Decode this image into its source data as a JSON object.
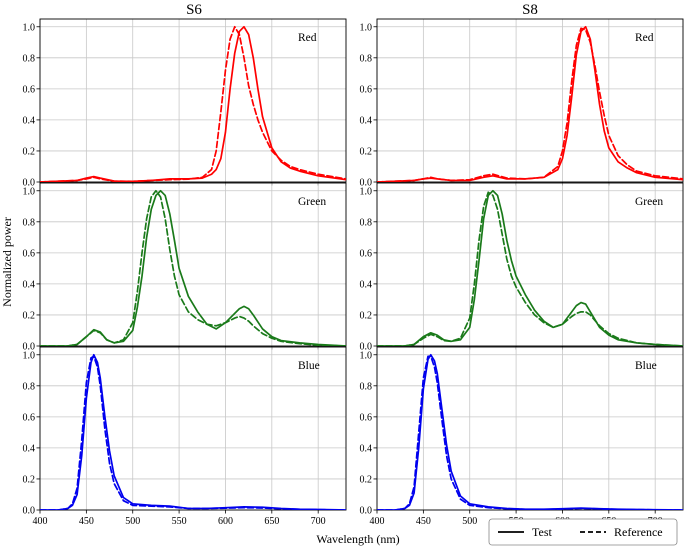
{
  "figure": {
    "ylabel": "Normalized power",
    "xlabel": "Wavelength (nm)",
    "legend": {
      "solid_label": "Test",
      "dashed_label": "Reference",
      "placement": "bottom-right, below plots"
    }
  },
  "columns": [
    "S6",
    "S8"
  ],
  "rows": [
    "Red",
    "Green",
    "Blue"
  ],
  "colors": {
    "Red": "#ff0000",
    "Green": "#1a7a1a",
    "Blue": "#0000ee"
  },
  "x_ticks": [
    "400",
    "450",
    "500",
    "550",
    "600",
    "650",
    "700"
  ],
  "y_ticks": [
    "0.0",
    "0.2",
    "0.4",
    "0.6",
    "0.8",
    "1.0"
  ],
  "chart_data": {
    "type": "line",
    "xlabel": "Wavelength (nm)",
    "ylabel": "Normalized power",
    "xlim": [
      400,
      730
    ],
    "ylim": [
      0,
      1.05
    ],
    "grid": true,
    "legend": [
      "Test",
      "Reference"
    ],
    "panels": [
      {
        "column": "S6",
        "label": "Red",
        "series": [
          {
            "name": "Test",
            "x": [
              400,
              440,
              450,
              458,
              465,
              480,
              500,
              520,
              540,
              560,
              575,
              585,
              590,
              595,
              600,
              605,
              610,
              615,
              620,
              625,
              630,
              635,
              640,
              650,
              660,
              670,
              680,
              700,
              730
            ],
            "y": [
              0.0,
              0.01,
              0.025,
              0.035,
              0.025,
              0.006,
              0.004,
              0.01,
              0.02,
              0.02,
              0.025,
              0.05,
              0.08,
              0.15,
              0.32,
              0.6,
              0.83,
              0.97,
              1.0,
              0.95,
              0.8,
              0.6,
              0.42,
              0.22,
              0.13,
              0.09,
              0.07,
              0.04,
              0.015
            ]
          },
          {
            "name": "Reference",
            "x": [
              400,
              440,
              450,
              458,
              465,
              480,
              500,
              520,
              540,
              560,
              575,
              585,
              590,
              595,
              600,
              605,
              610,
              615,
              620,
              625,
              630,
              635,
              640,
              650,
              660,
              670,
              680,
              700,
              730
            ],
            "y": [
              0.0,
              0.01,
              0.02,
              0.03,
              0.02,
              0.005,
              0.004,
              0.01,
              0.015,
              0.018,
              0.03,
              0.08,
              0.2,
              0.45,
              0.72,
              0.92,
              1.0,
              0.95,
              0.8,
              0.62,
              0.5,
              0.4,
              0.32,
              0.2,
              0.14,
              0.1,
              0.08,
              0.05,
              0.02
            ]
          }
        ]
      },
      {
        "column": "S8",
        "label": "Red",
        "series": [
          {
            "name": "Test",
            "x": [
              400,
              440,
              450,
              458,
              465,
              480,
              500,
              515,
              525,
              540,
              560,
              580,
              595,
              600,
              605,
              610,
              615,
              620,
              625,
              630,
              635,
              640,
              645,
              650,
              660,
              670,
              680,
              700,
              730
            ],
            "y": [
              0.0,
              0.01,
              0.02,
              0.025,
              0.02,
              0.01,
              0.01,
              0.03,
              0.04,
              0.02,
              0.02,
              0.03,
              0.08,
              0.15,
              0.3,
              0.55,
              0.82,
              0.97,
              1.0,
              0.92,
              0.72,
              0.5,
              0.33,
              0.22,
              0.13,
              0.09,
              0.06,
              0.03,
              0.015
            ]
          },
          {
            "name": "Reference",
            "x": [
              400,
              440,
              450,
              458,
              465,
              480,
              500,
              515,
              525,
              540,
              560,
              580,
              595,
              600,
              605,
              610,
              615,
              620,
              625,
              630,
              635,
              640,
              645,
              650,
              660,
              670,
              680,
              700,
              730
            ],
            "y": [
              0.0,
              0.01,
              0.02,
              0.03,
              0.02,
              0.01,
              0.015,
              0.04,
              0.05,
              0.025,
              0.02,
              0.03,
              0.1,
              0.2,
              0.38,
              0.65,
              0.88,
              0.99,
              0.98,
              0.9,
              0.75,
              0.58,
              0.43,
              0.3,
              0.17,
              0.11,
              0.07,
              0.04,
              0.02
            ]
          }
        ]
      },
      {
        "column": "S6",
        "label": "Green",
        "series": [
          {
            "name": "Test",
            "x": [
              400,
              430,
              440,
              450,
              458,
              465,
              472,
              480,
              490,
              500,
              505,
              510,
              515,
              520,
              525,
              530,
              535,
              540,
              545,
              550,
              560,
              570,
              580,
              590,
              600,
              610,
              615,
              620,
              625,
              630,
              640,
              650,
              660,
              680,
              700,
              730
            ],
            "y": [
              0.0,
              0.0,
              0.01,
              0.06,
              0.105,
              0.09,
              0.04,
              0.02,
              0.03,
              0.1,
              0.25,
              0.45,
              0.7,
              0.88,
              0.97,
              1.0,
              0.97,
              0.85,
              0.68,
              0.5,
              0.32,
              0.22,
              0.14,
              0.11,
              0.15,
              0.21,
              0.24,
              0.255,
              0.24,
              0.2,
              0.11,
              0.06,
              0.035,
              0.02,
              0.01,
              0.0
            ]
          },
          {
            "name": "Reference",
            "x": [
              400,
              430,
              440,
              450,
              458,
              465,
              472,
              480,
              490,
              500,
              505,
              510,
              515,
              520,
              525,
              530,
              535,
              540,
              545,
              550,
              560,
              570,
              580,
              590,
              600,
              610,
              615,
              620,
              625,
              630,
              640,
              650,
              660,
              680,
              700,
              730
            ],
            "y": [
              0.0,
              0.0,
              0.01,
              0.06,
              0.1,
              0.085,
              0.04,
              0.02,
              0.04,
              0.15,
              0.35,
              0.6,
              0.82,
              0.96,
              1.0,
              0.96,
              0.82,
              0.62,
              0.45,
              0.33,
              0.22,
              0.17,
              0.14,
              0.13,
              0.15,
              0.18,
              0.19,
              0.18,
              0.16,
              0.13,
              0.08,
              0.05,
              0.03,
              0.015,
              0.005,
              0.0
            ]
          }
        ]
      },
      {
        "column": "S8",
        "label": "Green",
        "series": [
          {
            "name": "Test",
            "x": [
              400,
              430,
              440,
              450,
              458,
              465,
              472,
              480,
              490,
              500,
              505,
              510,
              515,
              520,
              525,
              530,
              535,
              540,
              545,
              550,
              560,
              570,
              580,
              590,
              600,
              610,
              615,
              620,
              625,
              630,
              640,
              650,
              660,
              680,
              700,
              730
            ],
            "y": [
              0.0,
              0.0,
              0.01,
              0.06,
              0.085,
              0.07,
              0.04,
              0.03,
              0.04,
              0.12,
              0.3,
              0.55,
              0.82,
              0.97,
              1.0,
              0.97,
              0.85,
              0.68,
              0.55,
              0.45,
              0.33,
              0.23,
              0.16,
              0.12,
              0.14,
              0.22,
              0.26,
              0.28,
              0.27,
              0.22,
              0.12,
              0.07,
              0.04,
              0.02,
              0.01,
              0.0
            ]
          },
          {
            "name": "Reference",
            "x": [
              400,
              430,
              440,
              450,
              458,
              465,
              472,
              480,
              490,
              500,
              505,
              510,
              515,
              520,
              525,
              530,
              535,
              540,
              545,
              550,
              560,
              570,
              580,
              590,
              600,
              610,
              615,
              620,
              625,
              630,
              640,
              650,
              660,
              680,
              700,
              730
            ],
            "y": [
              0.0,
              0.0,
              0.01,
              0.05,
              0.075,
              0.06,
              0.035,
              0.03,
              0.05,
              0.18,
              0.4,
              0.68,
              0.9,
              0.99,
              0.97,
              0.88,
              0.72,
              0.56,
              0.45,
              0.38,
              0.28,
              0.2,
              0.15,
              0.12,
              0.14,
              0.19,
              0.21,
              0.22,
              0.22,
              0.2,
              0.13,
              0.08,
              0.05,
              0.02,
              0.01,
              0.0
            ]
          }
        ]
      },
      {
        "column": "S6",
        "label": "Blue",
        "series": [
          {
            "name": "Test",
            "x": [
              400,
              420,
              430,
              435,
              440,
              445,
              450,
              455,
              458,
              462,
              465,
              470,
              475,
              480,
              490,
              500,
              520,
              540,
              560,
              580,
              600,
              620,
              640,
              660,
              680,
              700,
              730
            ],
            "y": [
              0.0,
              0.0,
              0.01,
              0.03,
              0.1,
              0.35,
              0.72,
              0.95,
              1.0,
              0.95,
              0.85,
              0.6,
              0.38,
              0.22,
              0.08,
              0.04,
              0.03,
              0.025,
              0.01,
              0.01,
              0.015,
              0.02,
              0.018,
              0.01,
              0.005,
              0.003,
              0.0
            ]
          },
          {
            "name": "Reference",
            "x": [
              400,
              420,
              430,
              435,
              440,
              445,
              450,
              455,
              458,
              462,
              465,
              470,
              475,
              480,
              490,
              500,
              520,
              540,
              560,
              580,
              600,
              620,
              640,
              660,
              680,
              700,
              730
            ],
            "y": [
              0.0,
              0.0,
              0.01,
              0.04,
              0.14,
              0.45,
              0.82,
              0.98,
              0.99,
              0.92,
              0.8,
              0.52,
              0.3,
              0.17,
              0.06,
              0.03,
              0.025,
              0.02,
              0.01,
              0.01,
              0.012,
              0.015,
              0.013,
              0.008,
              0.004,
              0.002,
              0.0
            ]
          }
        ]
      },
      {
        "column": "S8",
        "label": "Blue",
        "series": [
          {
            "name": "Test",
            "x": [
              400,
              420,
              430,
              435,
              440,
              445,
              450,
              455,
              458,
              462,
              465,
              470,
              475,
              480,
              490,
              500,
              520,
              540,
              560,
              580,
              600,
              620,
              640,
              660,
              680,
              700,
              730
            ],
            "y": [
              0.0,
              0.0,
              0.01,
              0.03,
              0.11,
              0.4,
              0.78,
              0.97,
              1.0,
              0.96,
              0.88,
              0.65,
              0.42,
              0.25,
              0.09,
              0.04,
              0.02,
              0.01,
              0.005,
              0.005,
              0.008,
              0.012,
              0.008,
              0.005,
              0.003,
              0.002,
              0.0
            ]
          },
          {
            "name": "Reference",
            "x": [
              400,
              420,
              430,
              435,
              440,
              445,
              450,
              455,
              458,
              462,
              465,
              470,
              475,
              480,
              490,
              500,
              520,
              540,
              560,
              580,
              600,
              620,
              640,
              660,
              680,
              700,
              730
            ],
            "y": [
              0.0,
              0.0,
              0.01,
              0.04,
              0.15,
              0.5,
              0.85,
              0.99,
              0.99,
              0.92,
              0.82,
              0.58,
              0.35,
              0.2,
              0.07,
              0.03,
              0.015,
              0.008,
              0.004,
              0.004,
              0.006,
              0.01,
              0.007,
              0.004,
              0.002,
              0.001,
              0.0
            ]
          }
        ]
      }
    ]
  }
}
